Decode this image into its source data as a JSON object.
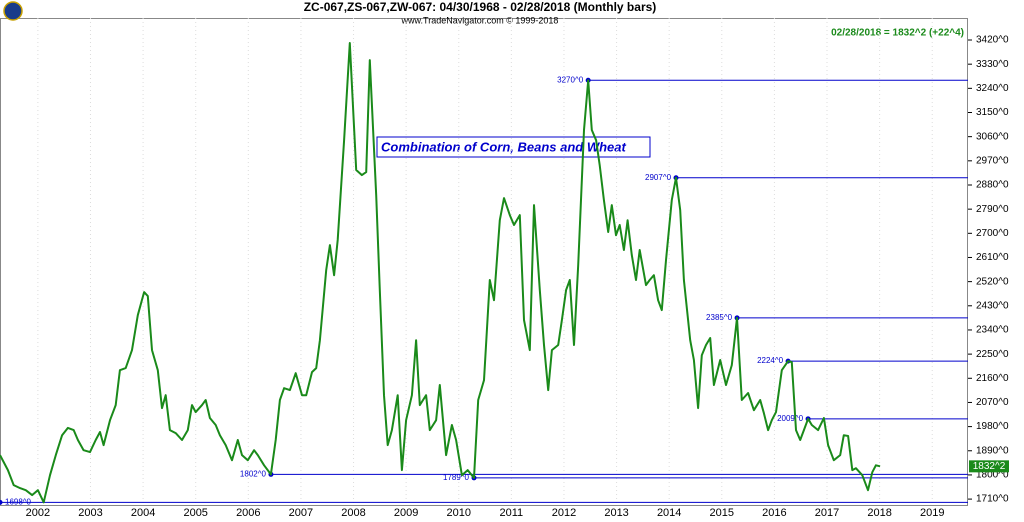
{
  "chart_data": {
    "type": "line",
    "title": "ZC-067,ZS-067,ZW-067:  04/30/1968 - 02/28/2018  (Monthly bars)",
    "subtitle": "www.TradeNavigator.com © 1999-2018",
    "last_bar_text": "02/28/2018 = 1832^2 (+22^4)",
    "annotation": "Combination of Corn, Beans and Wheat",
    "price_marker": "1832^2",
    "xlim": [
      2001.28,
      2019.68
    ],
    "xticks": [
      2002,
      2003,
      2004,
      2005,
      2006,
      2007,
      2008,
      2009,
      2010,
      2011,
      2012,
      2013,
      2014,
      2015,
      2016,
      2017,
      2018,
      2019
    ],
    "ylim": [
      1688,
      3502
    ],
    "yticks": [
      {
        "value": 1710,
        "label": "1710^0"
      },
      {
        "value": 1800,
        "label": "1800^0"
      },
      {
        "value": 1890,
        "label": "1890^0"
      },
      {
        "value": 1980,
        "label": "1980^0"
      },
      {
        "value": 2070,
        "label": "2070^0"
      },
      {
        "value": 2160,
        "label": "2160^0"
      },
      {
        "value": 2250,
        "label": "2250^0"
      },
      {
        "value": 2340,
        "label": "2340^0"
      },
      {
        "value": 2430,
        "label": "2430^0"
      },
      {
        "value": 2520,
        "label": "2520^0"
      },
      {
        "value": 2610,
        "label": "2610^0"
      },
      {
        "value": 2700,
        "label": "2700^0"
      },
      {
        "value": 2790,
        "label": "2790^0"
      },
      {
        "value": 2880,
        "label": "2880^0"
      },
      {
        "value": 2970,
        "label": "2970^0"
      },
      {
        "value": 3060,
        "label": "3060^0"
      },
      {
        "value": 3150,
        "label": "3150^0"
      },
      {
        "value": 3240,
        "label": "3240^0"
      },
      {
        "value": 3330,
        "label": "3330^0"
      },
      {
        "value": 3420,
        "label": "3420^0"
      }
    ],
    "levels_color": "#0000cc",
    "levels": [
      {
        "x": 2001.28,
        "value": 1698,
        "label": "1698^0"
      },
      {
        "x": 2006.43,
        "value": 1802,
        "label": "1802^0"
      },
      {
        "x": 2010.29,
        "value": 1789,
        "label": "1789^0"
      },
      {
        "x": 2012.46,
        "value": 3270,
        "label": "3270^0"
      },
      {
        "x": 2014.13,
        "value": 2907,
        "label": "2907^0"
      },
      {
        "x": 2015.29,
        "value": 2385,
        "label": "2385^0"
      },
      {
        "x": 2016.26,
        "value": 2224,
        "label": "2224^0"
      },
      {
        "x": 2016.64,
        "value": 2009,
        "label": "2009^0"
      }
    ],
    "x": [
      2001.28,
      2001.43,
      2001.54,
      2001.66,
      2001.77,
      2001.89,
      2002.0,
      2002.11,
      2002.23,
      2002.34,
      2002.46,
      2002.57,
      2002.68,
      2002.76,
      2002.87,
      2002.99,
      2003.1,
      2003.18,
      2003.25,
      2003.37,
      2003.48,
      2003.56,
      2003.67,
      2003.79,
      2003.9,
      2004.02,
      2004.09,
      2004.17,
      2004.28,
      2004.36,
      2004.43,
      2004.51,
      2004.62,
      2004.74,
      2004.85,
      2004.93,
      2005.0,
      2005.12,
      2005.19,
      2005.27,
      2005.38,
      2005.46,
      2005.57,
      2005.69,
      2005.8,
      2005.88,
      2005.99,
      2006.11,
      2006.18,
      2006.3,
      2006.43,
      2006.52,
      2006.6,
      2006.68,
      2006.79,
      2006.9,
      2007.02,
      2007.1,
      2007.21,
      2007.29,
      2007.36,
      2007.48,
      2007.55,
      2007.63,
      2007.7,
      2007.82,
      2007.93,
      2008.05,
      2008.16,
      2008.24,
      2008.31,
      2008.43,
      2008.5,
      2008.58,
      2008.65,
      2008.73,
      2008.84,
      2008.92,
      2009.0,
      2009.11,
      2009.19,
      2009.26,
      2009.38,
      2009.45,
      2009.57,
      2009.64,
      2009.76,
      2009.87,
      2009.95,
      2010.06,
      2010.17,
      2010.29,
      2010.37,
      2010.48,
      2010.59,
      2010.67,
      2010.78,
      2010.86,
      2010.97,
      2011.05,
      2011.16,
      2011.24,
      2011.35,
      2011.43,
      2011.54,
      2011.62,
      2011.7,
      2011.77,
      2011.89,
      2011.96,
      2012.04,
      2012.11,
      2012.19,
      2012.27,
      2012.38,
      2012.46,
      2012.53,
      2012.61,
      2012.68,
      2012.76,
      2012.84,
      2012.91,
      2012.99,
      2013.06,
      2013.14,
      2013.21,
      2013.29,
      2013.37,
      2013.44,
      2013.56,
      2013.63,
      2013.71,
      2013.79,
      2013.86,
      2013.94,
      2014.05,
      2014.13,
      2014.21,
      2014.28,
      2014.4,
      2014.47,
      2014.55,
      2014.62,
      2014.7,
      2014.78,
      2014.85,
      2014.97,
      2015.08,
      2015.19,
      2015.29,
      2015.38,
      2015.5,
      2015.61,
      2015.73,
      2015.8,
      2015.88,
      2015.95,
      2016.03,
      2016.14,
      2016.26,
      2016.33,
      2016.41,
      2016.49,
      2016.56,
      2016.64,
      2016.71,
      2016.83,
      2016.94,
      2017.02,
      2017.13,
      2017.25,
      2017.32,
      2017.4,
      2017.48,
      2017.55,
      2017.67,
      2017.78,
      2017.86,
      2017.93,
      2018.01
    ],
    "series": [
      {
        "color": "#1a8a1a",
        "values": [
          1874,
          1818,
          1762,
          1751,
          1743,
          1725,
          1743,
          1698,
          1799,
          1874,
          1948,
          1975,
          1967,
          1930,
          1892,
          1885,
          1930,
          1960,
          1911,
          2004,
          2060,
          2190,
          2198,
          2265,
          2395,
          2481,
          2466,
          2265,
          2190,
          2049,
          2097,
          1967,
          1956,
          1930,
          1967,
          2060,
          2034,
          2060,
          2079,
          2012,
          1986,
          1948,
          1911,
          1855,
          1930,
          1874,
          1855,
          1892,
          1874,
          1836,
          1802,
          1930,
          2079,
          2123,
          2116,
          2179,
          2097,
          2097,
          2183,
          2198,
          2302,
          2563,
          2656,
          2544,
          2675,
          3047,
          3409,
          2936,
          2917,
          2928,
          3345,
          2842,
          2489,
          2097,
          1911,
          1967,
          2097,
          1818,
          2004,
          2097,
          2302,
          2060,
          2097,
          1967,
          2004,
          2135,
          1874,
          1986,
          1930,
          1799,
          1818,
          1789,
          2079,
          2153,
          2526,
          2451,
          2749,
          2831,
          2768,
          2731,
          2768,
          2377,
          2265,
          2805,
          2489,
          2284,
          2116,
          2265,
          2284,
          2377,
          2489,
          2526,
          2284,
          2582,
          3085,
          3270,
          3085,
          3047,
          2954,
          2824,
          2705,
          2805,
          2693,
          2731,
          2638,
          2749,
          2619,
          2526,
          2638,
          2507,
          2526,
          2544,
          2451,
          2414,
          2600,
          2824,
          2907,
          2787,
          2526,
          2302,
          2228,
          2049,
          2246,
          2284,
          2310,
          2135,
          2228,
          2135,
          2209,
          2385,
          2079,
          2105,
          2041,
          2079,
          2030,
          1967,
          2004,
          2034,
          2190,
          2224,
          2220,
          1967,
          1930,
          1967,
          2009,
          1986,
          1967,
          2012,
          1911,
          1855,
          1874,
          1948,
          1945,
          1818,
          1825,
          1799,
          1743,
          1810,
          1836,
          1832
        ]
      }
    ]
  }
}
